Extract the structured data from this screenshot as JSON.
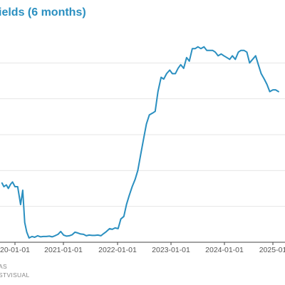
{
  "chart_data": {
    "type": "line",
    "title": "ields (6 months)",
    "xlabel": "",
    "ylabel": "",
    "x_ticks": [
      "20-01-01",
      "2021-01-01",
      "2022-01-01",
      "2023-01-01",
      "2024-01-01",
      "2025-01"
    ],
    "ylim": [
      0,
      6
    ],
    "grid": true,
    "color": "#2a8fc0",
    "series": [
      {
        "x": [
          "2019-10-01",
          "2019-10-15",
          "2019-11-01",
          "2019-11-15",
          "2019-12-01",
          "2019-12-15",
          "2020-01-01",
          "2020-01-20",
          "2020-02-10",
          "2020-02-25",
          "2020-03-10",
          "2020-03-25",
          "2020-04-10",
          "2020-05-01",
          "2020-05-20",
          "2020-06-10",
          "2020-07-01",
          "2020-07-20",
          "2020-08-10",
          "2020-09-01",
          "2020-09-20",
          "2020-10-10",
          "2020-11-01",
          "2020-11-20",
          "2020-12-10",
          "2021-01-01",
          "2021-01-20",
          "2021-02-10",
          "2021-03-01",
          "2021-03-20",
          "2021-04-10",
          "2021-05-01",
          "2021-05-20",
          "2021-06-10",
          "2021-07-01",
          "2021-07-20",
          "2021-08-10",
          "2021-09-01",
          "2021-09-20",
          "2021-10-10",
          "2021-11-01",
          "2021-11-20",
          "2021-12-10",
          "2022-01-01",
          "2022-01-20",
          "2022-02-10",
          "2022-03-01",
          "2022-03-20",
          "2022-04-10",
          "2022-05-01",
          "2022-05-20",
          "2022-06-10",
          "2022-07-01",
          "2022-07-20",
          "2022-08-10",
          "2022-09-01",
          "2022-09-20",
          "2022-10-10",
          "2022-11-01",
          "2022-11-20",
          "2022-12-10",
          "2023-01-01",
          "2023-01-20",
          "2023-02-10",
          "2023-03-01",
          "2023-03-20",
          "2023-04-10",
          "2023-05-01",
          "2023-05-20",
          "2023-06-10",
          "2023-07-01",
          "2023-07-20",
          "2023-08-10",
          "2023-09-01",
          "2023-09-20",
          "2023-10-10",
          "2023-11-01",
          "2023-11-20",
          "2023-12-10",
          "2024-01-01",
          "2024-01-20",
          "2024-02-10",
          "2024-03-01",
          "2024-03-20",
          "2024-04-10",
          "2024-05-01",
          "2024-05-20",
          "2024-06-10",
          "2024-07-01",
          "2024-07-20",
          "2024-08-10",
          "2024-09-01",
          "2024-09-20",
          "2024-10-10",
          "2024-11-01",
          "2024-11-20",
          "2024-12-10",
          "2025-01-01",
          "2025-01-20",
          "2025-02-10"
        ],
        "y": [
          1.65,
          1.55,
          1.6,
          1.5,
          1.62,
          1.68,
          1.55,
          1.55,
          1.05,
          1.45,
          0.55,
          0.28,
          0.12,
          0.16,
          0.14,
          0.18,
          0.15,
          0.16,
          0.16,
          0.17,
          0.15,
          0.18,
          0.22,
          0.3,
          0.2,
          0.17,
          0.18,
          0.21,
          0.28,
          0.26,
          0.23,
          0.22,
          0.18,
          0.2,
          0.19,
          0.19,
          0.2,
          0.18,
          0.24,
          0.3,
          0.38,
          0.36,
          0.4,
          0.38,
          0.65,
          0.72,
          1.05,
          1.3,
          1.55,
          1.75,
          2.0,
          2.45,
          2.9,
          3.3,
          3.55,
          3.6,
          3.65,
          4.2,
          4.6,
          4.55,
          4.7,
          4.8,
          4.7,
          4.7,
          4.85,
          4.95,
          4.85,
          5.15,
          5.05,
          5.4,
          5.4,
          5.45,
          5.4,
          5.45,
          5.35,
          5.35,
          5.35,
          5.3,
          5.2,
          5.25,
          5.2,
          5.15,
          5.1,
          5.2,
          5.1,
          5.3,
          5.35,
          5.35,
          5.3,
          5.0,
          5.1,
          5.2,
          4.95,
          4.7,
          4.55,
          4.4,
          4.2,
          4.25,
          4.25,
          4.2
        ]
      }
    ]
  },
  "source": {
    "line1": "AS",
    "line2": "STVISUAL"
  }
}
